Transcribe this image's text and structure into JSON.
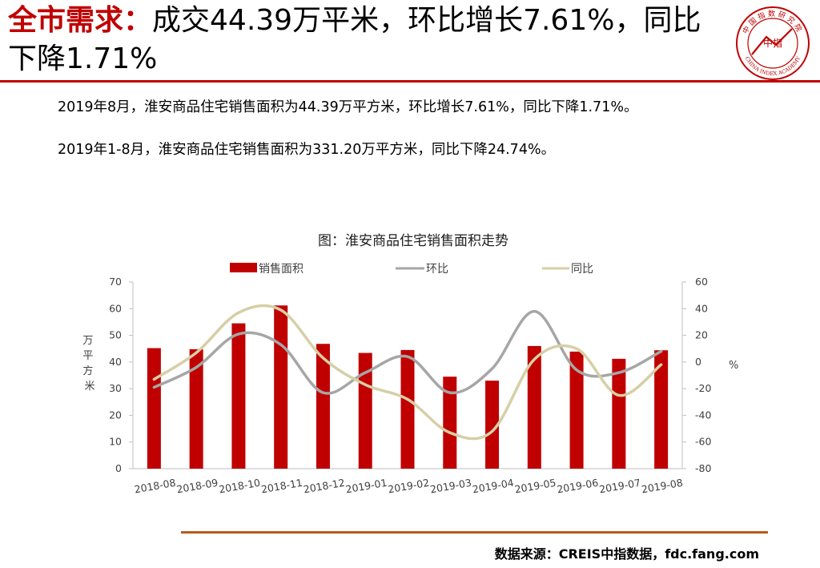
{
  "title_accent": "全市需求：",
  "title_rest": "成交44.39万平米，环比增长7.61%，同比下降1.71%",
  "paragraphs": [
    "2019年8月，淮安商品住宅销售面积为44.39万平方米，环比增长7.61%，同比下降1.71%。",
    "2019年1-8月，淮安商品住宅销售面积为331.20万平方米，同比下降24.74%。"
  ],
  "logo": {
    "top_text": "中国指数研究院",
    "center_text": "中指",
    "bottom_text": "CHINA INDEX ACADEMY",
    "color": "#c00000"
  },
  "source": "数据来源：CREIS中指数据，fdc.fang.com",
  "chart_data": {
    "type": "bar",
    "title": "图：淮安商品住宅销售面积走势",
    "categories": [
      "2018-08",
      "2018-09",
      "2018-10",
      "2018-11",
      "2018-12",
      "2019-01",
      "2019-02",
      "2019-03",
      "2019-04",
      "2019-05",
      "2019-06",
      "2019-07",
      "2019-08"
    ],
    "y_left": {
      "label": "万平方米",
      "ylim": [
        0,
        70
      ],
      "ticks": [
        0,
        10,
        20,
        30,
        40,
        50,
        60,
        70
      ]
    },
    "y_right": {
      "label": "%",
      "ylim": [
        -80,
        60
      ],
      "ticks": [
        -80,
        -60,
        -40,
        -20,
        0,
        20,
        40,
        60
      ]
    },
    "series": [
      {
        "name": "销售面积",
        "kind": "bar",
        "axis": "left",
        "color": "#c00000",
        "values": [
          45.2,
          44.8,
          54.5,
          61.2,
          46.8,
          43.4,
          44.5,
          34.5,
          33.0,
          46.0,
          43.9,
          41.2,
          44.4
        ]
      },
      {
        "name": "环比",
        "kind": "line",
        "axis": "right",
        "color": "#a6a6a6",
        "values": [
          -19,
          -4,
          21,
          13,
          -23,
          -8,
          4,
          -23,
          -5,
          38,
          -6,
          -8,
          8
        ]
      },
      {
        "name": "同比",
        "kind": "line",
        "axis": "right",
        "color": "#d6cfa6",
        "values": [
          -13,
          7,
          37,
          39,
          3,
          -17,
          -28,
          -53,
          -52,
          2,
          10,
          -25,
          -2
        ]
      }
    ],
    "legend_position": "top",
    "grid": false
  }
}
